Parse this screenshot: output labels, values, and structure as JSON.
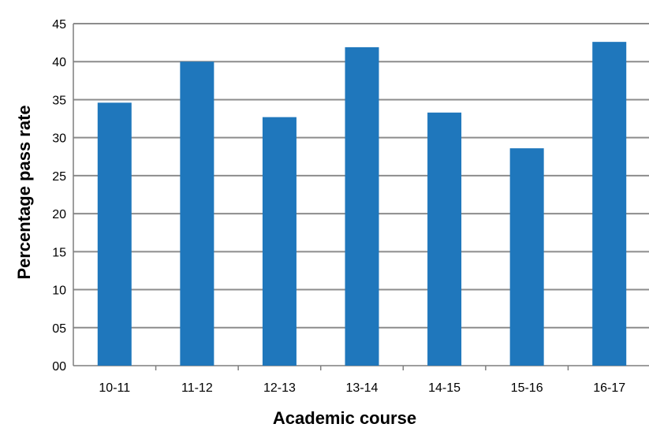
{
  "chart_data": {
    "type": "bar",
    "title": "",
    "xlabel": "Academic course",
    "ylabel": "Percentage pass rate",
    "categories": [
      "10-11",
      "11-12",
      "12-13",
      "13-14",
      "14-15",
      "15-16",
      "16-17"
    ],
    "values": [
      34.6,
      40.0,
      32.7,
      41.9,
      33.3,
      28.6,
      42.6
    ],
    "ylim": [
      0,
      45
    ],
    "ytick_labels": [
      "00",
      "05",
      "10",
      "15",
      "20",
      "25",
      "30",
      "35",
      "40",
      "45"
    ],
    "grid": true,
    "legend": "none",
    "colors": {
      "bar": "#1F77BC",
      "grid": "#8C8C8C",
      "axis": "#7F7F7F"
    }
  }
}
